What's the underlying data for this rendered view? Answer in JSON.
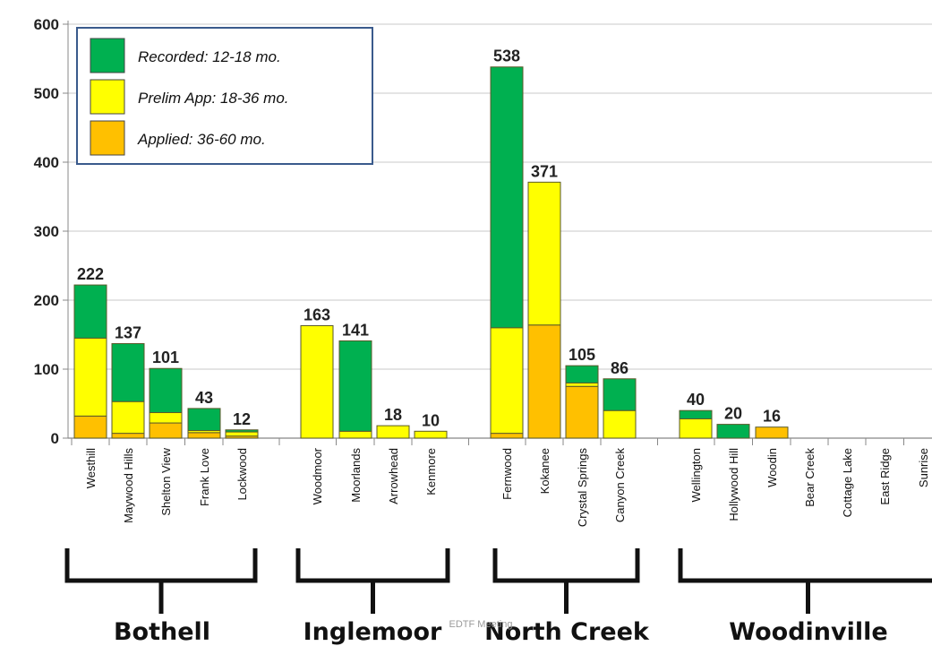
{
  "chart_data": {
    "type": "bar",
    "stacked": true,
    "y_ticks": [
      "0",
      "100",
      "200",
      "300",
      "400",
      "500",
      "600"
    ],
    "ylim": [
      0,
      600
    ],
    "grid": true,
    "legend_position": "top-left",
    "categories": [
      "Westhill",
      "Maywood Hills",
      "Shelton View",
      "Frank Love",
      "Lockwood",
      "Woodmoor",
      "Moorlands",
      "Arrowhead",
      "Kenmore",
      "Fernwood",
      "Kokanee",
      "Crystal Springs",
      "Canyon Creek",
      "Wellington",
      "Hollywood Hill",
      "Woodin",
      "Bear Creek",
      "Cottage Lake",
      "East Ridge",
      "Sunrise"
    ],
    "series": [
      {
        "name": "Applied: 36-60 mo.",
        "color": "#ffc000",
        "values": [
          32,
          7,
          22,
          8,
          3,
          0,
          0,
          0,
          0,
          7,
          164,
          75,
          0,
          0,
          0,
          16,
          0,
          0,
          0,
          0
        ]
      },
      {
        "name": "Prelim App: 18-36 mo.",
        "color": "#ffff00",
        "values": [
          113,
          46,
          15,
          3,
          6,
          163,
          10,
          18,
          10,
          153,
          207,
          5,
          40,
          28,
          0,
          0,
          0,
          0,
          0,
          0
        ]
      },
      {
        "name": "Recorded: 12-18 mo.",
        "color": "#00b050",
        "values": [
          77,
          84,
          64,
          32,
          3,
          0,
          131,
          0,
          0,
          378,
          0,
          25,
          46,
          12,
          20,
          0,
          0,
          0,
          0,
          0
        ]
      }
    ],
    "totals": [
      "222",
      "137",
      "101",
      "43",
      "12",
      "163",
      "141",
      "18",
      "10",
      "538",
      "371",
      "105",
      "86",
      "40",
      "20",
      "16",
      "",
      "",
      "",
      ""
    ],
    "legend_entries": [
      {
        "label": "Recorded: 12-18 mo.",
        "color": "#00b050"
      },
      {
        "label": "Prelim App: 18-36 mo.",
        "color": "#ffff00"
      },
      {
        "label": "Applied: 36-60 mo.",
        "color": "#ffc000"
      }
    ],
    "groups": [
      {
        "label": "Bothell",
        "count": 5
      },
      {
        "label": "Inglemoor",
        "count": 4
      },
      {
        "label": "North Creek",
        "count": 4
      },
      {
        "label": "Woodinville",
        "count": 7
      }
    ]
  },
  "watermark": "EDTF Meeting"
}
